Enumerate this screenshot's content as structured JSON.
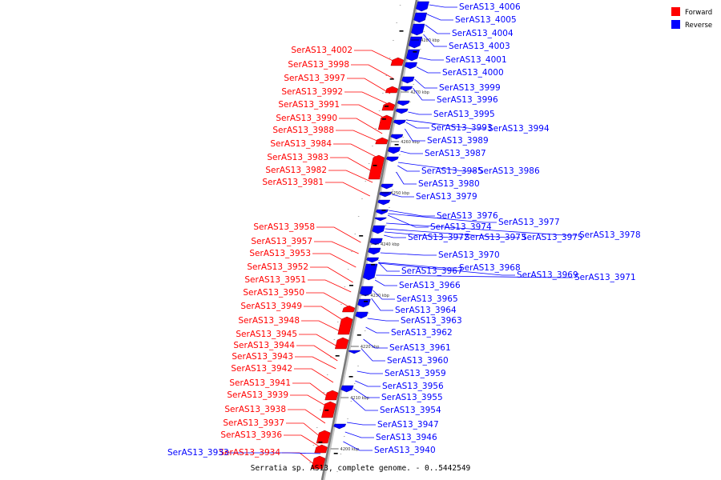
{
  "legend": {
    "forward_label": "Forward",
    "reverse_label": "Reverse",
    "forward_color": "#ff0000",
    "reverse_color": "#0000ff"
  },
  "caption": "Serratia sp. AS13, complete genome. - 0..5442549",
  "ticks": [
    "4280 kbp",
    "4270 kbp",
    "4260 kbp",
    "4250 kbp",
    "4240 kbp",
    "4230 kbp",
    "4220 kbp",
    "4210 kbp",
    "4200 kbp"
  ],
  "forward_genes": [
    "SerAS13_4002",
    "SerAS13_3998",
    "SerAS13_3997",
    "SerAS13_3992",
    "SerAS13_3991",
    "SerAS13_3990",
    "SerAS13_3988",
    "SerAS13_3984",
    "SerAS13_3983",
    "SerAS13_3982",
    "SerAS13_3981",
    "SerAS13_3958",
    "SerAS13_3957",
    "SerAS13_3953",
    "SerAS13_3952",
    "SerAS13_3951",
    "SerAS13_3950",
    "SerAS13_3949",
    "SerAS13_3948",
    "SerAS13_3945",
    "SerAS13_3944",
    "SerAS13_3943",
    "SerAS13_3942",
    "SerAS13_3941",
    "SerAS13_3939",
    "SerAS13_3938",
    "SerAS13_3937",
    "SerAS13_3936",
    "SerAS13_3934"
  ],
  "reverse_genes": [
    "SerAS13_4006",
    "SerAS13_4005",
    "SerAS13_4004",
    "SerAS13_4003",
    "SerAS13_4001",
    "SerAS13_4000",
    "SerAS13_3999",
    "SerAS13_3996",
    "SerAS13_3995",
    "SerAS13_3993",
    "SerAS13_3994",
    "SerAS13_3989",
    "SerAS13_3987",
    "SerAS13_3985",
    "SerAS13_3986",
    "SerAS13_3980",
    "SerAS13_3979",
    "SerAS13_3976",
    "SerAS13_3977",
    "SerAS13_3974",
    "SerAS13_3972",
    "SerAS13_3973",
    "SerAS13_3975",
    "SerAS13_3978",
    "SerAS13_3970",
    "SerAS13_3968",
    "SerAS13_3967",
    "SerAS13_3969",
    "SerAS13_3971",
    "SerAS13_3966",
    "SerAS13_3965",
    "SerAS13_3964",
    "SerAS13_3963",
    "SerAS13_3962",
    "SerAS13_3961",
    "SerAS13_3960",
    "SerAS13_3959",
    "SerAS13_3956",
    "SerAS13_3955",
    "SerAS13_3954",
    "SerAS13_3947",
    "SerAS13_3946",
    "SerAS13_3940",
    "SerAS13_3933"
  ]
}
